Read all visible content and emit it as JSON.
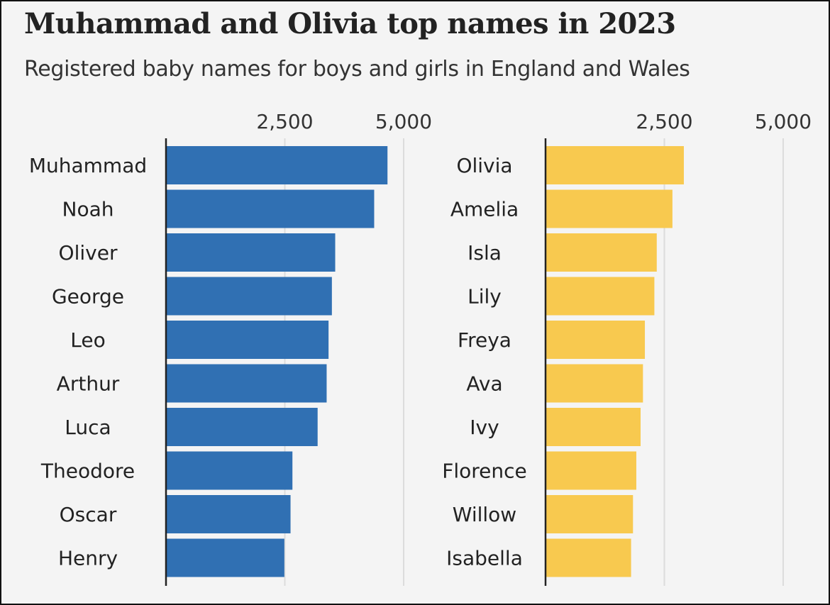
{
  "title": "Muhammad and Olivia top names in 2023",
  "subtitle": "Registered baby names for boys and girls in England and Wales",
  "colors": {
    "boys": "#3070b3",
    "girls": "#f8c94f",
    "gridline": "#dcdcdc",
    "axis": "#222222"
  },
  "chart_data": [
    {
      "type": "bar",
      "orientation": "horizontal",
      "title": "",
      "xlabel": "",
      "ylabel": "",
      "xlim": [
        0,
        5000
      ],
      "ticks": [
        2500,
        5000
      ],
      "tick_labels": [
        "2,500",
        "5,000"
      ],
      "grid": true,
      "categories": [
        "Muhammad",
        "Noah",
        "Oliver",
        "George",
        "Leo",
        "Arthur",
        "Luca",
        "Theodore",
        "Oscar",
        "Henry"
      ],
      "values": [
        4660,
        4380,
        3560,
        3490,
        3420,
        3380,
        3190,
        2660,
        2620,
        2490
      ],
      "color": "#3070b3"
    },
    {
      "type": "bar",
      "orientation": "horizontal",
      "title": "",
      "xlabel": "",
      "ylabel": "",
      "xlim": [
        0,
        5000
      ],
      "ticks": [
        2500,
        5000
      ],
      "tick_labels": [
        "2,500",
        "5,000"
      ],
      "grid": true,
      "categories": [
        "Olivia",
        "Amelia",
        "Isla",
        "Lily",
        "Freya",
        "Ava",
        "Ivy",
        "Florence",
        "Willow",
        "Isabella"
      ],
      "values": [
        2910,
        2670,
        2340,
        2290,
        2090,
        2050,
        2000,
        1910,
        1840,
        1800
      ],
      "color": "#f8c94f"
    }
  ]
}
